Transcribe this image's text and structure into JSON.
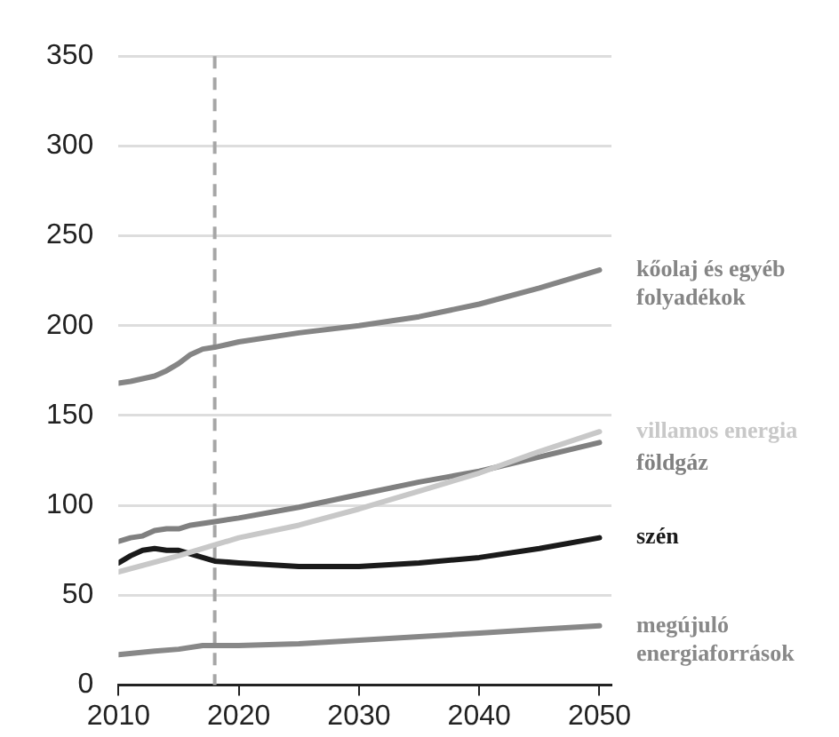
{
  "chart_data": {
    "type": "line",
    "xlim": [
      2010,
      2051
    ],
    "xticks": [
      2010,
      2020,
      2030,
      2040,
      2050
    ],
    "ylim": [
      0,
      350
    ],
    "yticks": [
      0,
      50,
      100,
      150,
      200,
      250,
      300,
      350
    ],
    "grid": "y",
    "legend": false,
    "marker": "none",
    "line_style": "solid",
    "ref_lines": [
      {
        "axis": "x",
        "value": 2018,
        "color": "#a6a6a6",
        "line_style": "dashed"
      }
    ],
    "series": [
      {
        "name": "kőolaj és egyéb folyadékok",
        "color": "#858585",
        "x": [
          2010,
          2011,
          2013,
          2014,
          2015,
          2016,
          2017,
          2018,
          2020,
          2025,
          2030,
          2035,
          2040,
          2045,
          2050
        ],
        "values": [
          168,
          169,
          172,
          175,
          179,
          184,
          187,
          188,
          191,
          196,
          200,
          205,
          212,
          221,
          231
        ]
      },
      {
        "name": "villamos energia",
        "color": "#c8c8c8",
        "x": [
          2010,
          2015,
          2018,
          2020,
          2025,
          2030,
          2035,
          2040,
          2045,
          2050
        ],
        "values": [
          63,
          72,
          78,
          82,
          89,
          98,
          108,
          118,
          130,
          141
        ]
      },
      {
        "name": "földgáz",
        "color": "#808080",
        "x": [
          2010,
          2011,
          2012,
          2013,
          2014,
          2015,
          2016,
          2018,
          2020,
          2025,
          2030,
          2035,
          2040,
          2045,
          2050
        ],
        "values": [
          80,
          82,
          83,
          86,
          87,
          87,
          89,
          91,
          93,
          99,
          106,
          113,
          119,
          127,
          135
        ]
      },
      {
        "name": "szén",
        "color": "#1a1a1a",
        "x": [
          2010,
          2011,
          2012,
          2013,
          2014,
          2015,
          2016,
          2017,
          2018,
          2020,
          2025,
          2030,
          2035,
          2040,
          2045,
          2050
        ],
        "values": [
          68,
          72,
          75,
          76,
          75,
          75,
          73,
          71,
          69,
          68,
          66,
          66,
          68,
          71,
          76,
          82
        ]
      },
      {
        "name": "megújuló energiaforrások",
        "color": "#888888",
        "x": [
          2010,
          2013,
          2015,
          2017,
          2018,
          2020,
          2025,
          2030,
          2035,
          2040,
          2045,
          2050
        ],
        "values": [
          17,
          19,
          20,
          22,
          22,
          22,
          23,
          25,
          27,
          29,
          31,
          33
        ]
      }
    ]
  }
}
